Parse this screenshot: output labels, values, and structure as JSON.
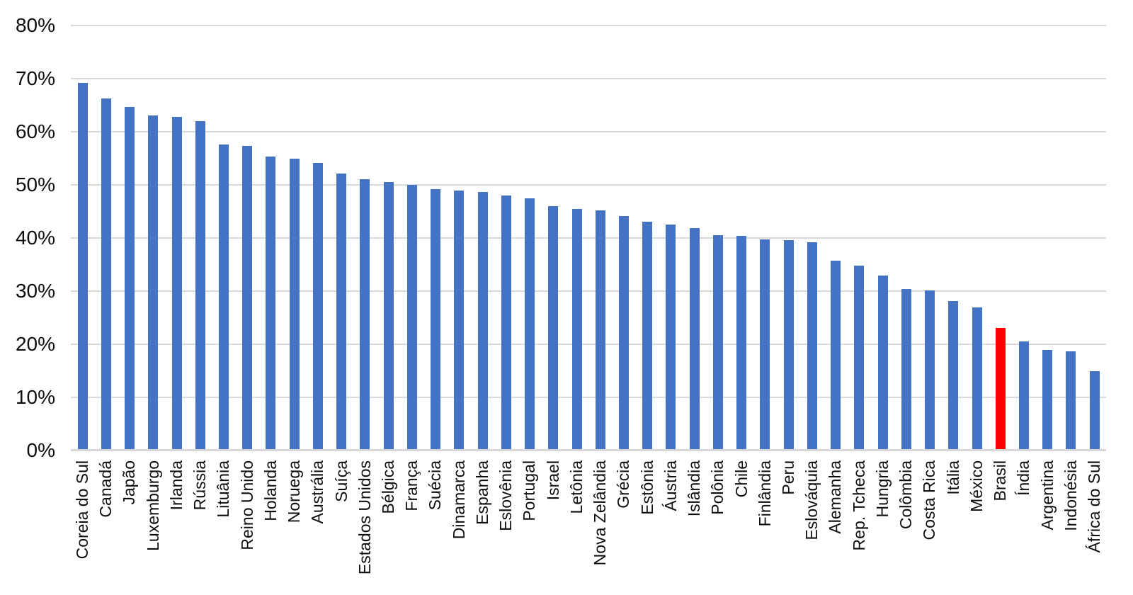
{
  "chart_data": {
    "type": "bar",
    "title": "",
    "xlabel": "",
    "ylabel": "",
    "categories": [
      "Coreia do Sul",
      "Canadá",
      "Japão",
      "Luxemburgo",
      "Irlanda",
      "Rússia",
      "Lituânia",
      "Reino Unido",
      "Holanda",
      "Noruega",
      "Austrália",
      "Suíça",
      "Estados Unidos",
      "Bélgica",
      "França",
      "Suécia",
      "Dinamarca",
      "Espanha",
      "Eslovênia",
      "Portugal",
      "Israel",
      "Letônia",
      "Nova Zelândia",
      "Grécia",
      "Estônia",
      "Áustria",
      "Islândia",
      "Polônia",
      "Chile",
      "Finlândia",
      "Peru",
      "Eslováquia",
      "Alemanha",
      "Rep. Tcheca",
      "Hungria",
      "Colômbia",
      "Costa Rica",
      "Itália",
      "México",
      "Brasil",
      "Índia",
      "Argentina",
      "Indonésia",
      "África do Sul"
    ],
    "values": [
      69.2,
      66.3,
      64.7,
      63.1,
      62.8,
      62.0,
      57.6,
      57.4,
      55.4,
      54.9,
      54.2,
      52.2,
      51.1,
      50.6,
      50.0,
      49.2,
      48.9,
      48.7,
      48.0,
      47.5,
      46.0,
      45.5,
      45.2,
      44.2,
      43.1,
      42.5,
      41.9,
      40.6,
      40.4,
      39.8,
      39.6,
      39.2,
      35.7,
      34.8,
      32.9,
      30.4,
      30.2,
      28.1,
      26.9,
      23.1,
      20.6,
      19.0,
      18.7,
      14.9
    ],
    "bar_color": "#4472c4",
    "highlight_category": "Brasil",
    "highlight_color": "#ff0000",
    "y_ticks": [
      "0%",
      "10%",
      "20%",
      "30%",
      "40%",
      "50%",
      "60%",
      "70%",
      "80%"
    ],
    "ylim": [
      0,
      80
    ],
    "y_tick_step": 10,
    "grid": true,
    "legend_position": "none",
    "x_label_rotation": 90
  },
  "colors": {
    "background": "#ffffff",
    "gridline": "#d9d9d9",
    "axis_line": "#d6d6d6",
    "text": "#0d0d0d",
    "bar": "#4472c4",
    "highlight": "#ff0000"
  }
}
